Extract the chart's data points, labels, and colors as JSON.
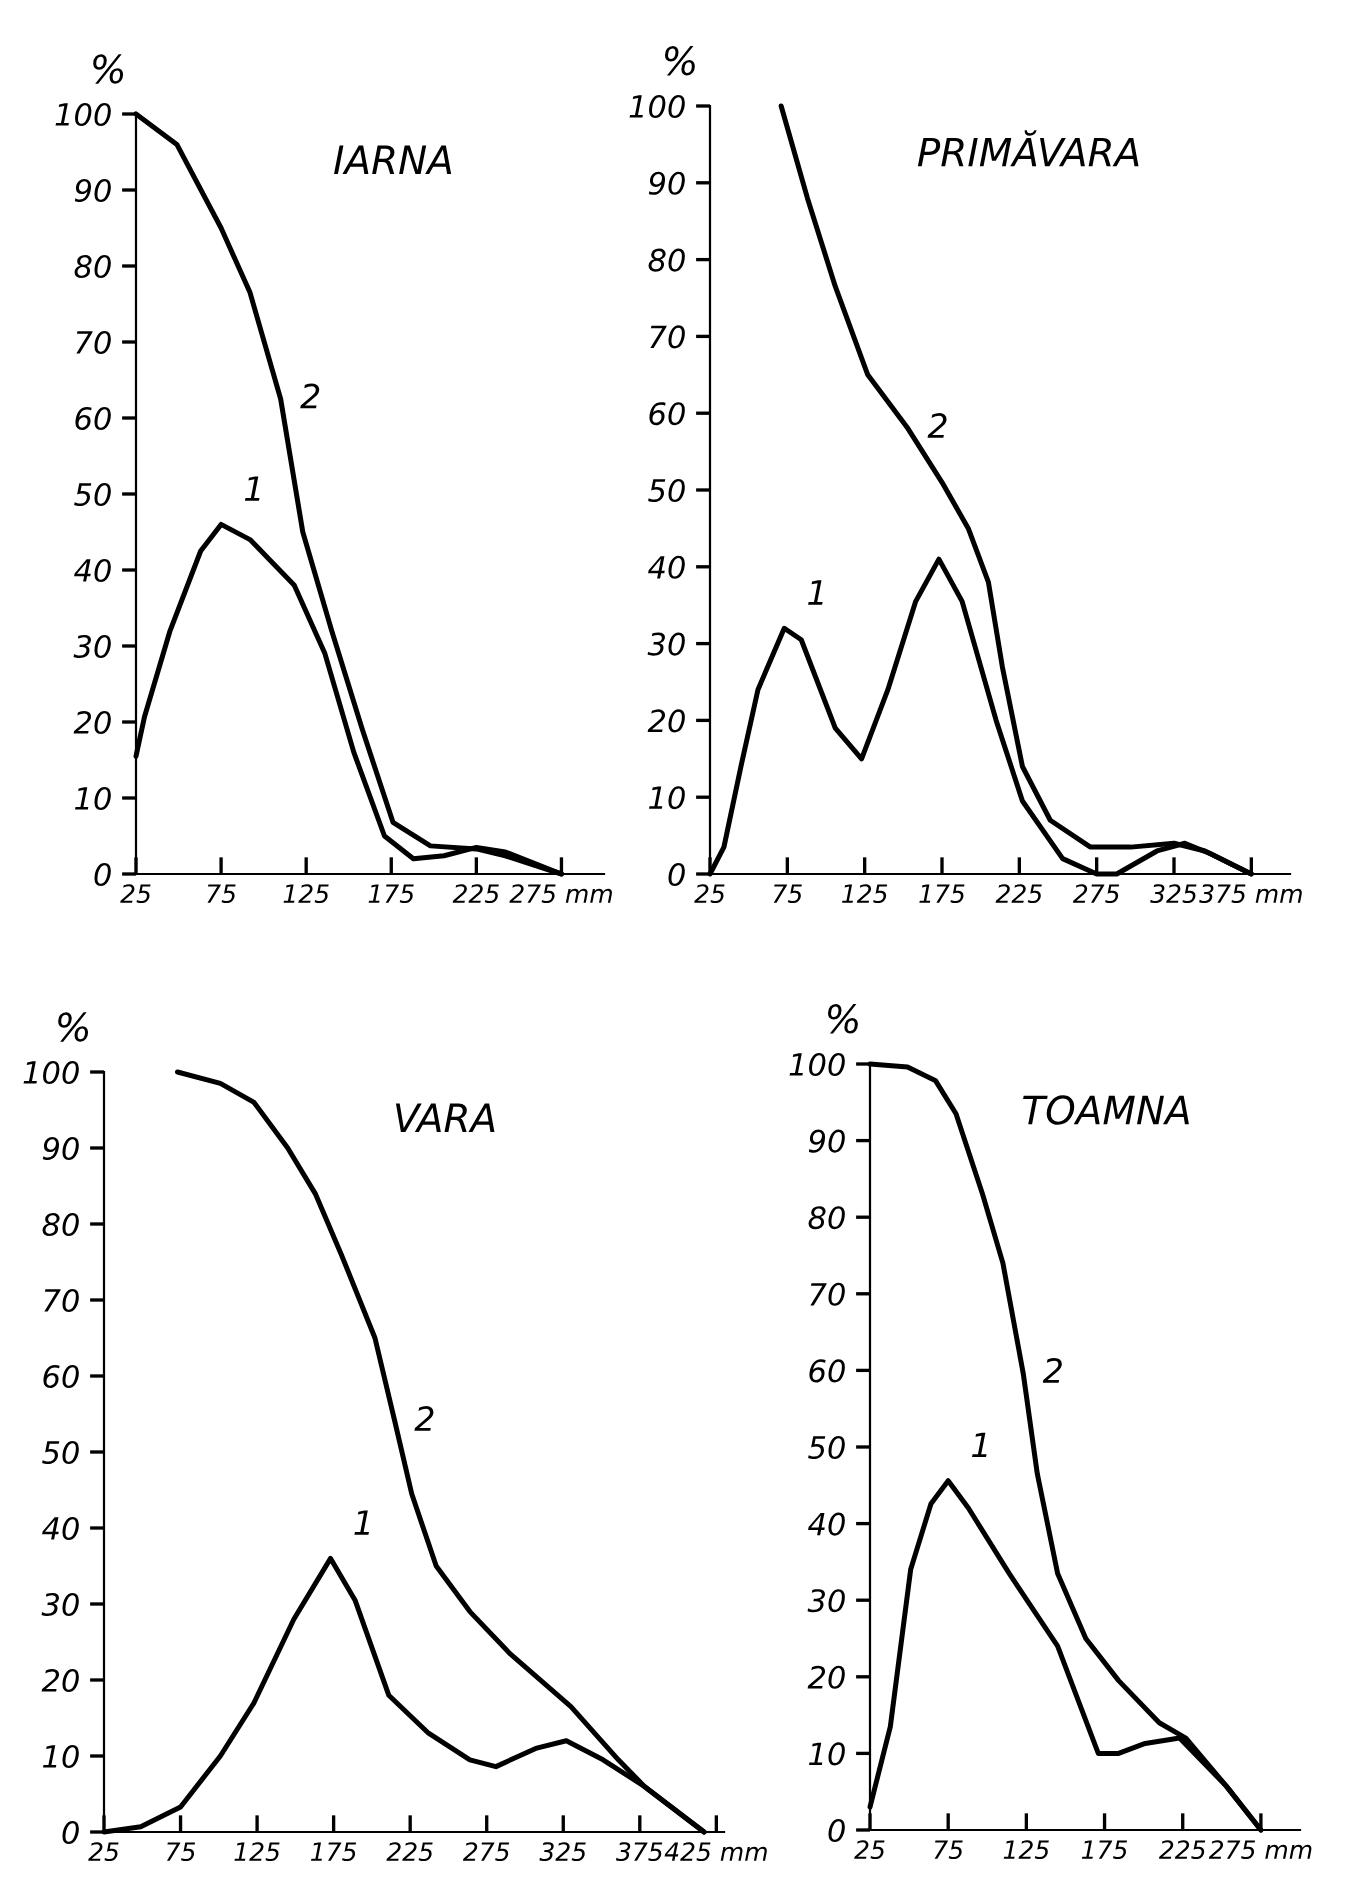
{
  "chart_data": [
    {
      "type": "line",
      "title": "IARNA",
      "ylabel": "%",
      "xlim": [
        25,
        300
      ],
      "ylim": [
        0,
        100
      ],
      "xticks": [
        25,
        75,
        125,
        175,
        225,
        {
          "value": 275,
          "label": "275 mm"
        }
      ],
      "yticks": [
        0,
        10,
        20,
        30,
        40,
        50,
        60,
        70,
        80,
        90,
        100
      ],
      "grid": false,
      "legend": false,
      "series": [
        {
          "name": "1",
          "color": "#000000",
          "x": [
            25,
            30,
            45,
            63,
            75,
            92,
            118,
            136,
            153,
            171,
            188,
            206,
            225,
            242,
            275
          ],
          "values": [
            15.5,
            20.7,
            32,
            42.5,
            46,
            44,
            38,
            29,
            16,
            5,
            2,
            2.4,
            3.5,
            2.9,
            0
          ]
        },
        {
          "name": "2",
          "color": "#000000",
          "x": [
            25,
            49,
            75,
            92,
            110,
            123,
            140,
            158,
            176,
            198,
            225,
            242,
            275
          ],
          "values": [
            100,
            96,
            85,
            76.5,
            62.5,
            45,
            32,
            19,
            6.8,
            3.7,
            3.3,
            2.4,
            0
          ]
        }
      ]
    },
    {
      "type": "line",
      "title": "PRIMĂVARA",
      "ylabel": "%",
      "xlim": [
        25,
        400
      ],
      "ylim": [
        0,
        100
      ],
      "xticks": [
        25,
        75,
        125,
        175,
        225,
        275,
        325,
        {
          "value": 375,
          "label": "375 mm"
        }
      ],
      "yticks": [
        0,
        10,
        20,
        30,
        40,
        50,
        60,
        70,
        80,
        90,
        100
      ],
      "grid": false,
      "legend": false,
      "series": [
        {
          "name": "1",
          "color": "#000000",
          "x": [
            25,
            34,
            45,
            56,
            73,
            84,
            106,
            123,
            140,
            158,
            173,
            188,
            210,
            227,
            253,
            275,
            288,
            314,
            332,
            349,
            375
          ],
          "values": [
            0,
            3.5,
            14,
            24,
            32,
            30.5,
            19,
            15,
            24,
            35.5,
            41,
            35.5,
            20,
            9.5,
            2,
            0,
            0,
            3,
            4,
            2.6,
            0
          ]
        },
        {
          "name": "2",
          "color": "#000000",
          "x": [
            71,
            88,
            106,
            127,
            153,
            175,
            192,
            205,
            214,
            227,
            245,
            271,
            297,
            325,
            345,
            375
          ],
          "values": [
            100,
            88,
            76.5,
            65,
            58,
            51,
            45,
            38,
            27,
            14,
            7,
            3.5,
            3.5,
            4,
            3,
            0
          ]
        }
      ]
    },
    {
      "type": "line",
      "title": "VARA",
      "ylabel": "%",
      "xlim": [
        25,
        430
      ],
      "ylim": [
        0,
        100
      ],
      "xticks": [
        25,
        75,
        125,
        175,
        225,
        275,
        325,
        375,
        {
          "value": 425,
          "label": "425 mm"
        }
      ],
      "yticks": [
        0,
        10,
        20,
        30,
        40,
        50,
        60,
        70,
        80,
        90,
        100
      ],
      "grid": false,
      "legend": false,
      "series": [
        {
          "name": "1",
          "color": "#000000",
          "x": [
            25,
            49,
            75,
            101,
            123,
            149,
            173,
            189,
            211,
            237,
            264,
            281,
            307,
            327,
            351,
            378,
            417
          ],
          "values": [
            0,
            0.7,
            3.3,
            10,
            17,
            28,
            36,
            30.5,
            18,
            13,
            9.5,
            8.6,
            11,
            12,
            9.5,
            6,
            0
          ]
        },
        {
          "name": "2",
          "color": "#000000",
          "x": [
            73,
            101,
            123,
            145,
            163,
            180,
            202,
            215,
            226,
            242,
            264,
            290,
            330,
            361,
            378,
            417
          ],
          "values": [
            100,
            98.5,
            96,
            90,
            84,
            76,
            65,
            54,
            44.5,
            35,
            29,
            23.5,
            16.5,
            9.5,
            6,
            0
          ]
        }
      ]
    },
    {
      "type": "line",
      "title": "TOAMNA",
      "ylabel": "%",
      "xlim": [
        25,
        300
      ],
      "ylim": [
        0,
        100
      ],
      "xticks": [
        25,
        75,
        125,
        175,
        225,
        {
          "value": 275,
          "label": "275 mm"
        }
      ],
      "yticks": [
        0,
        10,
        20,
        30,
        40,
        50,
        60,
        70,
        80,
        90,
        100
      ],
      "grid": false,
      "legend": false,
      "series": [
        {
          "name": "1",
          "color": "#000000",
          "x": [
            25,
            38,
            51,
            64,
            75,
            88,
            114,
            145,
            171,
            184,
            201,
            223,
            253,
            275
          ],
          "values": [
            3,
            13.5,
            34,
            42.6,
            45.6,
            42,
            33.5,
            24,
            10,
            10,
            11.3,
            12,
            5.7,
            0
          ]
        },
        {
          "name": "2",
          "color": "#000000",
          "x": [
            25,
            49,
            67,
            80,
            97,
            110,
            123,
            132,
            145,
            163,
            184,
            210,
            227,
            253,
            275
          ],
          "values": [
            100,
            99.6,
            97.8,
            93.5,
            83,
            74,
            59.6,
            46.5,
            33.5,
            25,
            19.5,
            14,
            12,
            5.7,
            0
          ]
        }
      ]
    }
  ]
}
